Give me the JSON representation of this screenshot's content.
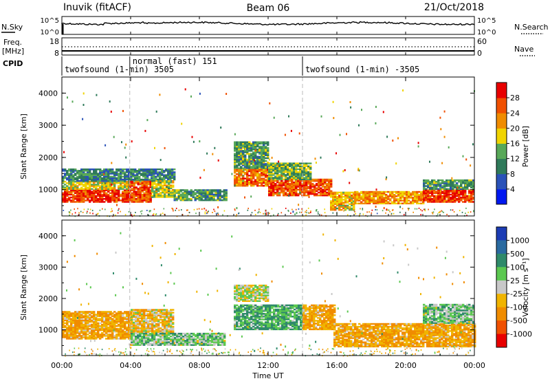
{
  "header": {
    "station": "Inuvik (fitACF)",
    "beam": "Beam 06",
    "date": "21/Oct/2018"
  },
  "left_labels": {
    "nsky": "N.Sky",
    "freq": "Freq.",
    "freq_unit": "[MHz]",
    "cpid": "CPID"
  },
  "right_labels": {
    "nsearch": "N.Search",
    "nave": "Nave"
  },
  "noise_panel": {
    "left_ticks": [
      "10^5",
      "10^0"
    ],
    "right_ticks": [
      "10^5",
      "10^0"
    ]
  },
  "freq_panel": {
    "left_ticks": [
      "18",
      "8"
    ],
    "right_ticks": [
      "60",
      "0"
    ]
  },
  "cpid_segments": [
    {
      "label": "twofsound (1-min) 3505",
      "start_hour": 0.0,
      "end_hour": 3.95
    },
    {
      "label": "normal (fast) 151",
      "start_hour": 3.95,
      "end_hour": 14.0
    },
    {
      "label": "twofsound (1-min) -3505",
      "start_hour": 14.0,
      "end_hour": 24.0
    }
  ],
  "x_axis": {
    "label": "Time UT",
    "ticks": [
      "00:00",
      "04:00",
      "08:00",
      "12:00",
      "16:00",
      "20:00",
      "00:00"
    ],
    "tick_hours": [
      0,
      4,
      8,
      12,
      16,
      20,
      24
    ]
  },
  "power_panel": {
    "y_label": "Slant Range [km]",
    "y_ticks": [
      "1000",
      "2000",
      "3000",
      "4000"
    ],
    "y_tick_values": [
      1000,
      2000,
      3000,
      4000
    ],
    "colorbar_label": "Power [dB]",
    "colorbar_ticks": [
      "4",
      "8",
      "12",
      "16",
      "20",
      "24",
      "28"
    ],
    "colorbar_colors": [
      "#0018f0",
      "#2a52b8",
      "#2f7a5a",
      "#58a858",
      "#f0d400",
      "#f08c00",
      "#f05000",
      "#e80000"
    ]
  },
  "velocity_panel": {
    "y_label": "Slant Range [km]",
    "y_ticks": [
      "1000",
      "2000",
      "3000",
      "4000"
    ],
    "y_tick_values": [
      1000,
      2000,
      3000,
      4000
    ],
    "colorbar_label": "Velocity [m s⁻¹]",
    "colorbar_ticks": [
      "1000",
      "500",
      "100",
      "25",
      "-25",
      "-100",
      "-500",
      "-1000"
    ],
    "colorbar_colors": [
      "#1c3cb4",
      "#2a6aa0",
      "#2f8a6a",
      "#5cc850",
      "#c8c8c8",
      "#f0b400",
      "#f08c00",
      "#f05000",
      "#e80000"
    ]
  },
  "chart_data": {
    "type": "heatmap",
    "x_range_hours": [
      0,
      24
    ],
    "y_range_km": [
      180,
      4500
    ],
    "regions_power": [
      {
        "t0": 0.0,
        "t1": 3.9,
        "r0": 600,
        "r1": 1000,
        "level": 28
      },
      {
        "t0": 0.0,
        "t1": 3.9,
        "r0": 1000,
        "r1": 1250,
        "level": 18
      },
      {
        "t0": 0.0,
        "t1": 6.5,
        "r0": 1250,
        "r1": 1650,
        "level": 10
      },
      {
        "t0": 3.9,
        "t1": 5.2,
        "r0": 600,
        "r1": 1250,
        "level": 26
      },
      {
        "t0": 5.2,
        "t1": 6.5,
        "r0": 750,
        "r1": 1250,
        "level": 16
      },
      {
        "t0": 6.5,
        "t1": 9.5,
        "r0": 650,
        "r1": 1000,
        "level": 12
      },
      {
        "t0": 10.0,
        "t1": 12.0,
        "r0": 1600,
        "r1": 2500,
        "level": 12
      },
      {
        "t0": 10.0,
        "t1": 12.0,
        "r0": 1100,
        "r1": 1600,
        "level": 24
      },
      {
        "t0": 12.0,
        "t1": 15.6,
        "r0": 800,
        "r1": 1300,
        "level": 26
      },
      {
        "t0": 12.0,
        "t1": 14.5,
        "r0": 1300,
        "r1": 1800,
        "level": 14
      },
      {
        "t0": 15.6,
        "t1": 17.0,
        "r0": 350,
        "r1": 900,
        "level": 20
      },
      {
        "t0": 17.0,
        "t1": 21.0,
        "r0": 550,
        "r1": 950,
        "level": 22
      },
      {
        "t0": 21.0,
        "t1": 24.0,
        "r0": 600,
        "r1": 1000,
        "level": 28
      },
      {
        "t0": 21.0,
        "t1": 24.0,
        "r0": 1000,
        "r1": 1300,
        "level": 12
      }
    ],
    "regions_velocity": [
      {
        "t0": 0.0,
        "t1": 4.0,
        "r0": 700,
        "r1": 1600,
        "level": -100
      },
      {
        "t0": 4.0,
        "t1": 6.5,
        "r0": 900,
        "r1": 1650,
        "level": -50
      },
      {
        "t0": 4.0,
        "t1": 9.5,
        "r0": 500,
        "r1": 900,
        "level": 60
      },
      {
        "t0": 10.0,
        "t1": 14.0,
        "r0": 1000,
        "r1": 1800,
        "level": 100
      },
      {
        "t0": 10.0,
        "t1": 12.0,
        "r0": 1900,
        "r1": 2400,
        "level": 0
      },
      {
        "t0": 14.0,
        "t1": 15.8,
        "r0": 1000,
        "r1": 1800,
        "level": -100
      },
      {
        "t0": 15.8,
        "t1": 24.0,
        "r0": 450,
        "r1": 1200,
        "level": -100
      },
      {
        "t0": 21.0,
        "t1": 24.0,
        "r0": 1200,
        "r1": 1800,
        "level": 60
      }
    ]
  }
}
